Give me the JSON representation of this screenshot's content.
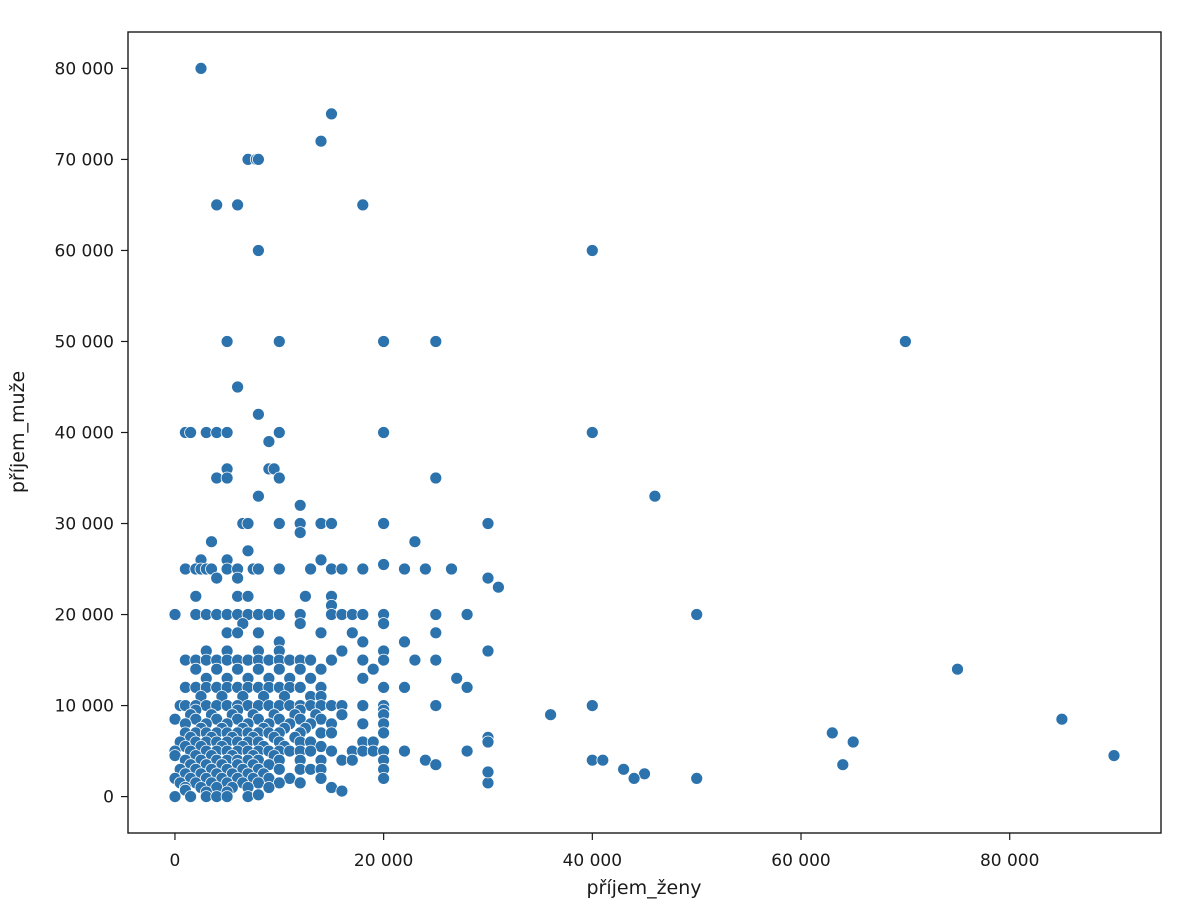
{
  "chart_data": {
    "type": "scatter",
    "title": "",
    "xlabel": "příjem_ženy",
    "ylabel": "příjem_muže",
    "xlim": [
      -4500,
      94500
    ],
    "ylim": [
      -4000,
      84000
    ],
    "x_ticks": [
      0,
      20000,
      40000,
      60000,
      80000
    ],
    "x_tick_labels": [
      "0",
      "20 000",
      "40 000",
      "60 000",
      "80 000"
    ],
    "y_ticks": [
      0,
      10000,
      20000,
      30000,
      40000,
      50000,
      60000,
      70000,
      80000
    ],
    "y_tick_labels": [
      "0",
      "10 000",
      "20 000",
      "30 000",
      "40 000",
      "50 000",
      "60 000",
      "70 000",
      "80 000"
    ],
    "grid": false,
    "marker_color": "#2c72ac",
    "marker_edge_color": "#ffffff",
    "points": [
      [
        2500,
        80000
      ],
      [
        15000,
        75000
      ],
      [
        14000,
        72000
      ],
      [
        7000,
        70000
      ],
      [
        7800,
        70000
      ],
      [
        8000,
        70000
      ],
      [
        4000,
        65000
      ],
      [
        6000,
        65000
      ],
      [
        18000,
        65000
      ],
      [
        8000,
        60000
      ],
      [
        40000,
        60000
      ],
      [
        5000,
        50000
      ],
      [
        10000,
        50000
      ],
      [
        20000,
        50000
      ],
      [
        25000,
        50000
      ],
      [
        70000,
        50000
      ],
      [
        6000,
        45000
      ],
      [
        8000,
        42000
      ],
      [
        9000,
        39000
      ],
      [
        1000,
        40000
      ],
      [
        1500,
        40000
      ],
      [
        3000,
        40000
      ],
      [
        4000,
        40000
      ],
      [
        5000,
        40000
      ],
      [
        10000,
        40000
      ],
      [
        20000,
        40000
      ],
      [
        40000,
        40000
      ],
      [
        9000,
        36000
      ],
      [
        9500,
        36000
      ],
      [
        5000,
        36000
      ],
      [
        4000,
        35000
      ],
      [
        5000,
        35000
      ],
      [
        10000,
        35000
      ],
      [
        25000,
        35000
      ],
      [
        8000,
        33000
      ],
      [
        46000,
        33000
      ],
      [
        12000,
        32000
      ],
      [
        6500,
        30000
      ],
      [
        7000,
        30000
      ],
      [
        10000,
        30000
      ],
      [
        12000,
        30000
      ],
      [
        14000,
        30000
      ],
      [
        15000,
        30000
      ],
      [
        20000,
        30000
      ],
      [
        30000,
        30000
      ],
      [
        12000,
        29000
      ],
      [
        23000,
        28000
      ],
      [
        3500,
        28000
      ],
      [
        7000,
        27000
      ],
      [
        2500,
        26000
      ],
      [
        5000,
        26000
      ],
      [
        14000,
        26000
      ],
      [
        20000,
        25500
      ],
      [
        1000,
        25000
      ],
      [
        2000,
        25000
      ],
      [
        2500,
        25000
      ],
      [
        3000,
        25000
      ],
      [
        3500,
        25000
      ],
      [
        5000,
        25000
      ],
      [
        6000,
        25000
      ],
      [
        7500,
        25000
      ],
      [
        8000,
        25000
      ],
      [
        10000,
        25000
      ],
      [
        13000,
        25000
      ],
      [
        15000,
        25000
      ],
      [
        16000,
        25000
      ],
      [
        18000,
        25000
      ],
      [
        22000,
        25000
      ],
      [
        24000,
        25000
      ],
      [
        26500,
        25000
      ],
      [
        6000,
        24000
      ],
      [
        4000,
        24000
      ],
      [
        30000,
        24000
      ],
      [
        31000,
        23000
      ],
      [
        2000,
        22000
      ],
      [
        6000,
        22000
      ],
      [
        7000,
        22000
      ],
      [
        12500,
        22000
      ],
      [
        15000,
        22000
      ],
      [
        15000,
        21000
      ],
      [
        0,
        20000
      ],
      [
        2000,
        20000
      ],
      [
        3000,
        20000
      ],
      [
        4000,
        20000
      ],
      [
        5000,
        20000
      ],
      [
        6000,
        20000
      ],
      [
        7000,
        20000
      ],
      [
        8000,
        20000
      ],
      [
        9000,
        20000
      ],
      [
        10000,
        20000
      ],
      [
        12000,
        20000
      ],
      [
        15000,
        20000
      ],
      [
        16000,
        20000
      ],
      [
        17000,
        20000
      ],
      [
        18000,
        20000
      ],
      [
        20000,
        20000
      ],
      [
        25000,
        20000
      ],
      [
        28000,
        20000
      ],
      [
        50000,
        20000
      ],
      [
        6500,
        19000
      ],
      [
        12000,
        19000
      ],
      [
        20000,
        19000
      ],
      [
        5000,
        18000
      ],
      [
        6000,
        18000
      ],
      [
        8000,
        18000
      ],
      [
        14000,
        18000
      ],
      [
        17000,
        18000
      ],
      [
        25000,
        18000
      ],
      [
        10000,
        17000
      ],
      [
        18000,
        17000
      ],
      [
        22000,
        17000
      ],
      [
        3000,
        16000
      ],
      [
        5000,
        16000
      ],
      [
        8000,
        16000
      ],
      [
        10000,
        16000
      ],
      [
        16000,
        16000
      ],
      [
        20000,
        16000
      ],
      [
        30000,
        16000
      ],
      [
        1000,
        15000
      ],
      [
        2000,
        15000
      ],
      [
        3000,
        15000
      ],
      [
        4000,
        15000
      ],
      [
        5000,
        15000
      ],
      [
        6000,
        15000
      ],
      [
        7000,
        15000
      ],
      [
        8000,
        15000
      ],
      [
        9000,
        15000
      ],
      [
        10000,
        15000
      ],
      [
        11000,
        15000
      ],
      [
        12000,
        15000
      ],
      [
        13000,
        15000
      ],
      [
        15000,
        15000
      ],
      [
        18000,
        15000
      ],
      [
        20000,
        15000
      ],
      [
        23000,
        15000
      ],
      [
        25000,
        15000
      ],
      [
        2000,
        14000
      ],
      [
        4000,
        14000
      ],
      [
        6000,
        14000
      ],
      [
        8000,
        14000
      ],
      [
        10000,
        14000
      ],
      [
        12000,
        14000
      ],
      [
        14000,
        14000
      ],
      [
        19000,
        14000
      ],
      [
        75000,
        14000
      ],
      [
        3000,
        13000
      ],
      [
        5000,
        13000
      ],
      [
        7000,
        13000
      ],
      [
        9000,
        13000
      ],
      [
        11000,
        13000
      ],
      [
        13000,
        13000
      ],
      [
        18000,
        13000
      ],
      [
        27000,
        13000
      ],
      [
        1000,
        12000
      ],
      [
        2000,
        12000
      ],
      [
        3000,
        12000
      ],
      [
        4000,
        12000
      ],
      [
        5000,
        12000
      ],
      [
        6000,
        12000
      ],
      [
        7000,
        12000
      ],
      [
        8000,
        12000
      ],
      [
        9000,
        12000
      ],
      [
        10000,
        12000
      ],
      [
        11000,
        12000
      ],
      [
        12000,
        12000
      ],
      [
        14000,
        12000
      ],
      [
        20000,
        12000
      ],
      [
        22000,
        12000
      ],
      [
        28000,
        12000
      ],
      [
        2500,
        11000
      ],
      [
        4500,
        11000
      ],
      [
        6500,
        11000
      ],
      [
        8500,
        11000
      ],
      [
        10500,
        11000
      ],
      [
        13000,
        11000
      ],
      [
        14000,
        11000
      ],
      [
        500,
        10000
      ],
      [
        1000,
        10000
      ],
      [
        2000,
        10000
      ],
      [
        3000,
        10000
      ],
      [
        4000,
        10000
      ],
      [
        5000,
        10000
      ],
      [
        6000,
        10000
      ],
      [
        7000,
        10000
      ],
      [
        8000,
        10000
      ],
      [
        9000,
        10000
      ],
      [
        10000,
        10000
      ],
      [
        11000,
        10000
      ],
      [
        12000,
        10000
      ],
      [
        13000,
        10000
      ],
      [
        14000,
        10000
      ],
      [
        15000,
        10000
      ],
      [
        16000,
        10000
      ],
      [
        18000,
        10000
      ],
      [
        20000,
        10000
      ],
      [
        25000,
        10000
      ],
      [
        40000,
        10000
      ],
      [
        2000,
        9500
      ],
      [
        6000,
        9500
      ],
      [
        12000,
        9500
      ],
      [
        20000,
        9500
      ],
      [
        1500,
        9000
      ],
      [
        3500,
        9000
      ],
      [
        5500,
        9000
      ],
      [
        7500,
        9000
      ],
      [
        9500,
        9000
      ],
      [
        11500,
        9000
      ],
      [
        13500,
        9000
      ],
      [
        16000,
        9000
      ],
      [
        20000,
        9000
      ],
      [
        36000,
        9000
      ],
      [
        0,
        8500
      ],
      [
        2000,
        8500
      ],
      [
        4000,
        8500
      ],
      [
        6000,
        8500
      ],
      [
        8000,
        8500
      ],
      [
        10000,
        8500
      ],
      [
        12000,
        8500
      ],
      [
        14000,
        8500
      ],
      [
        85000,
        8500
      ],
      [
        1000,
        8000
      ],
      [
        3000,
        8000
      ],
      [
        5000,
        8000
      ],
      [
        7000,
        8000
      ],
      [
        9000,
        8000
      ],
      [
        11000,
        8000
      ],
      [
        13000,
        8000
      ],
      [
        15000,
        8000
      ],
      [
        18000,
        8000
      ],
      [
        20000,
        8000
      ],
      [
        2500,
        7500
      ],
      [
        4500,
        7500
      ],
      [
        6500,
        7500
      ],
      [
        8500,
        7500
      ],
      [
        10500,
        7500
      ],
      [
        12500,
        7500
      ],
      [
        1000,
        7000
      ],
      [
        2000,
        7000
      ],
      [
        3000,
        7000
      ],
      [
        4000,
        7000
      ],
      [
        5000,
        7000
      ],
      [
        6000,
        7000
      ],
      [
        7000,
        7000
      ],
      [
        8000,
        7000
      ],
      [
        9000,
        7000
      ],
      [
        10000,
        7000
      ],
      [
        12000,
        7000
      ],
      [
        14000,
        7000
      ],
      [
        15000,
        7000
      ],
      [
        20000,
        7000
      ],
      [
        63000,
        7000
      ],
      [
        1500,
        6500
      ],
      [
        3500,
        6500
      ],
      [
        5500,
        6500
      ],
      [
        7500,
        6500
      ],
      [
        9500,
        6500
      ],
      [
        11500,
        6500
      ],
      [
        30000,
        6500
      ],
      [
        500,
        6000
      ],
      [
        2000,
        6000
      ],
      [
        3000,
        6000
      ],
      [
        4000,
        6000
      ],
      [
        5000,
        6000
      ],
      [
        6000,
        6000
      ],
      [
        7000,
        6000
      ],
      [
        8000,
        6000
      ],
      [
        10000,
        6000
      ],
      [
        12000,
        6000
      ],
      [
        13000,
        6000
      ],
      [
        18000,
        6000
      ],
      [
        19000,
        6000
      ],
      [
        30000,
        6000
      ],
      [
        65000,
        6000
      ],
      [
        1000,
        5500
      ],
      [
        2500,
        5500
      ],
      [
        4500,
        5500
      ],
      [
        6500,
        5500
      ],
      [
        8500,
        5500
      ],
      [
        10500,
        5500
      ],
      [
        14000,
        5500
      ],
      [
        0,
        5000
      ],
      [
        1500,
        5000
      ],
      [
        3000,
        5000
      ],
      [
        4000,
        5000
      ],
      [
        5000,
        5000
      ],
      [
        6000,
        5000
      ],
      [
        7000,
        5000
      ],
      [
        8000,
        5000
      ],
      [
        9000,
        5000
      ],
      [
        10000,
        5000
      ],
      [
        11000,
        5000
      ],
      [
        12000,
        5000
      ],
      [
        13000,
        5000
      ],
      [
        15000,
        5000
      ],
      [
        17000,
        5000
      ],
      [
        18000,
        5000
      ],
      [
        19000,
        5000
      ],
      [
        20000,
        5000
      ],
      [
        22000,
        5000
      ],
      [
        28000,
        5000
      ],
      [
        0,
        4500
      ],
      [
        2000,
        4500
      ],
      [
        3500,
        4500
      ],
      [
        5500,
        4500
      ],
      [
        7500,
        4500
      ],
      [
        9500,
        4500
      ],
      [
        90000,
        4500
      ],
      [
        1000,
        4000
      ],
      [
        2500,
        4000
      ],
      [
        4000,
        4000
      ],
      [
        5000,
        4000
      ],
      [
        6000,
        4000
      ],
      [
        7000,
        4000
      ],
      [
        8000,
        4000
      ],
      [
        10000,
        4000
      ],
      [
        12000,
        4000
      ],
      [
        14000,
        4000
      ],
      [
        16000,
        4000
      ],
      [
        17000,
        4000
      ],
      [
        20000,
        4000
      ],
      [
        24000,
        4000
      ],
      [
        40000,
        4000
      ],
      [
        41000,
        4000
      ],
      [
        1500,
        3500
      ],
      [
        3000,
        3500
      ],
      [
        4500,
        3500
      ],
      [
        6000,
        3500
      ],
      [
        7500,
        3500
      ],
      [
        9000,
        3500
      ],
      [
        25000,
        3500
      ],
      [
        64000,
        3500
      ],
      [
        500,
        3000
      ],
      [
        2000,
        3000
      ],
      [
        3500,
        3000
      ],
      [
        5000,
        3000
      ],
      [
        6500,
        3000
      ],
      [
        8000,
        3000
      ],
      [
        10000,
        3000
      ],
      [
        12000,
        3000
      ],
      [
        13000,
        3000
      ],
      [
        14000,
        3000
      ],
      [
        20000,
        3000
      ],
      [
        43000,
        3000
      ],
      [
        1000,
        2500
      ],
      [
        2500,
        2500
      ],
      [
        4000,
        2500
      ],
      [
        5500,
        2500
      ],
      [
        7000,
        2500
      ],
      [
        8500,
        2500
      ],
      [
        45000,
        2500
      ],
      [
        0,
        2000
      ],
      [
        1500,
        2000
      ],
      [
        3000,
        2000
      ],
      [
        4500,
        2000
      ],
      [
        6000,
        2000
      ],
      [
        7500,
        2000
      ],
      [
        9000,
        2000
      ],
      [
        11000,
        2000
      ],
      [
        14000,
        2000
      ],
      [
        20000,
        2000
      ],
      [
        44000,
        2000
      ],
      [
        50000,
        2000
      ],
      [
        500,
        1500
      ],
      [
        2000,
        1500
      ],
      [
        3500,
        1500
      ],
      [
        5000,
        1500
      ],
      [
        6500,
        1500
      ],
      [
        8000,
        1500
      ],
      [
        10000,
        1500
      ],
      [
        12000,
        1500
      ],
      [
        30000,
        1500
      ],
      [
        1000,
        1000
      ],
      [
        2500,
        1000
      ],
      [
        4000,
        1000
      ],
      [
        5500,
        1000
      ],
      [
        7000,
        1000
      ],
      [
        9000,
        1000
      ],
      [
        15000,
        1000
      ],
      [
        30000,
        2700
      ],
      [
        1000,
        700
      ],
      [
        3000,
        500
      ],
      [
        5000,
        500
      ],
      [
        16000,
        600
      ],
      [
        0,
        0
      ],
      [
        1500,
        0
      ],
      [
        3000,
        0
      ],
      [
        4000,
        0
      ],
      [
        5000,
        0
      ],
      [
        7000,
        0
      ],
      [
        8000,
        200
      ]
    ]
  }
}
